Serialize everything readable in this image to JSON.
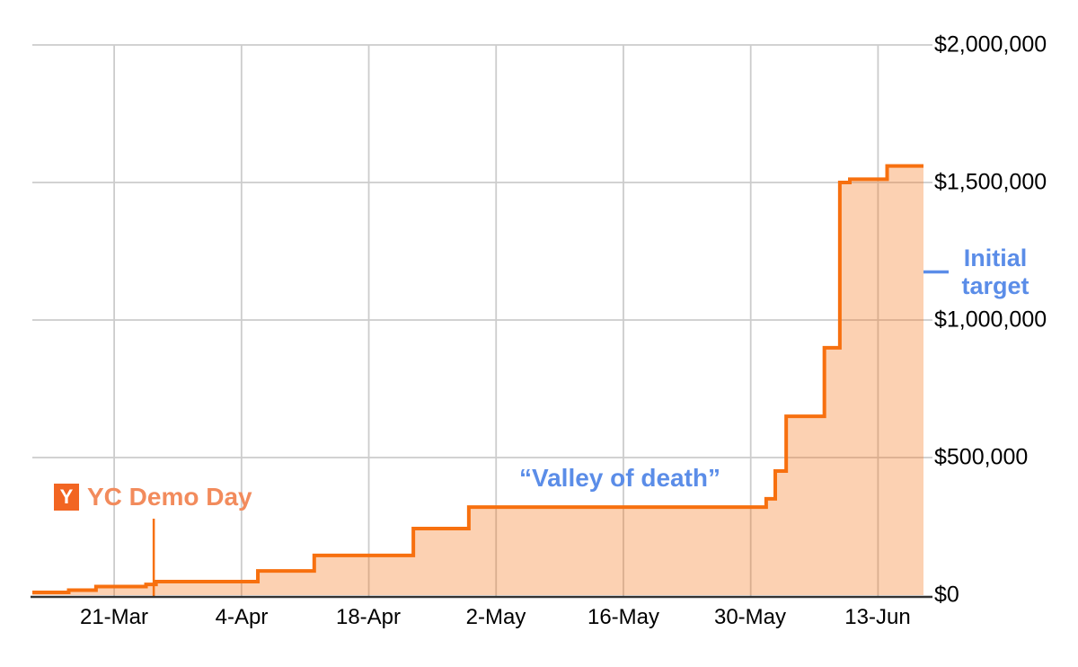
{
  "chart_data": {
    "type": "area",
    "subtype": "step",
    "title": "",
    "x_axis": {
      "ticks": [
        "21-Mar",
        "4-Apr",
        "18-Apr",
        "2-May",
        "16-May",
        "30-May",
        "13-Jun"
      ],
      "tick_days": [
        9,
        23,
        37,
        51,
        65,
        79,
        93
      ],
      "start_date": "12-Mar",
      "end_date": "18-Jun",
      "total_days": 98
    },
    "y_axis": {
      "ticks": [
        "$2,000,000",
        "$1,500,000",
        "$1,000,000",
        "$500,000",
        "$0"
      ],
      "tick_values": [
        2000000,
        1500000,
        1000000,
        500000,
        0
      ],
      "min": 0,
      "max": 2000000,
      "side": "right"
    },
    "grid": true,
    "legend_position": "none",
    "series": {
      "steps": [
        {
          "date": "12-Mar",
          "day": 0,
          "value": 10000
        },
        {
          "date": "16-Mar",
          "day": 4,
          "value": 18000
        },
        {
          "date": "19-Mar",
          "day": 7,
          "value": 31000
        },
        {
          "date": "24-Mar",
          "day": 12.5,
          "value": 39000
        },
        {
          "date": "26-Mar",
          "day": 13.6,
          "value": 49000
        },
        {
          "date": "6-Apr",
          "day": 24.8,
          "value": 88000
        },
        {
          "date": "12-Apr",
          "day": 31,
          "value": 144000
        },
        {
          "date": "23-Apr",
          "day": 41.9,
          "value": 242000
        },
        {
          "date": "29-Apr",
          "day": 48,
          "value": 320000
        },
        {
          "date": "1-Jun",
          "day": 80.7,
          "value": 350000
        },
        {
          "date": "2-Jun",
          "day": 81.7,
          "value": 451000
        },
        {
          "date": "3-Jun",
          "day": 82.9,
          "value": 650000
        },
        {
          "date": "7-Jun",
          "day": 87.1,
          "value": 899000
        },
        {
          "date": "9-Jun",
          "day": 88.8,
          "value": 1500000
        },
        {
          "date": "10-Jun",
          "day": 89.9,
          "value": 1512000
        },
        {
          "date": "14-Jun",
          "day": 94,
          "value": 1560000
        }
      ],
      "end_day": 98
    },
    "annotations": {
      "demo_day": {
        "label": "YC Demo Day",
        "icon_letter": "Y",
        "date": "25-Mar",
        "day": 13.35
      },
      "valley": {
        "label": "“Valley of death”"
      },
      "initial_target": {
        "label": "Initial target",
        "value": 1175000
      }
    },
    "colors": {
      "series_line": "#F7700F",
      "series_fill": "rgba(247,112,15,0.32)",
      "annotation_orange": "#F28B5C",
      "yc_badge_bg": "#F26522",
      "yc_badge_text": "#FFFFFF",
      "annotation_blue": "#5B8DE8",
      "gridline": "#CCCCCC",
      "axis_line": "#333333",
      "tick_text": "#000000"
    }
  }
}
